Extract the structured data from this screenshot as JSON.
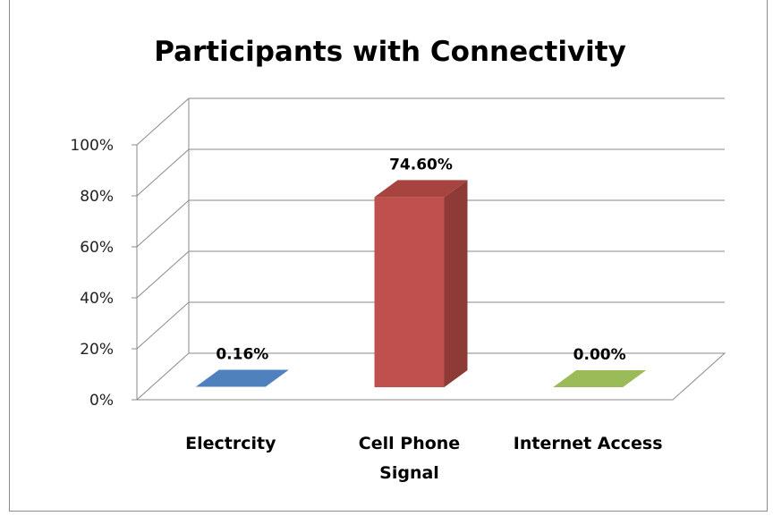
{
  "chart_data": {
    "type": "bar",
    "title": "Participants with Connectivity",
    "categories": [
      "Electrcity",
      "Cell Phone Signal",
      "Internet Access"
    ],
    "category_lines": [
      [
        "Electrcity"
      ],
      [
        "Cell Phone",
        "Signal"
      ],
      [
        "Internet Access"
      ]
    ],
    "values": [
      0.16,
      74.6,
      0.0
    ],
    "data_labels": [
      "0.16%",
      "74.60%",
      "0.00%"
    ],
    "ylim": [
      0,
      100
    ],
    "yticks": [
      "0%",
      "20%",
      "40%",
      "60%",
      "80%",
      "100%"
    ],
    "grid": true,
    "legend": "none",
    "three_d": true,
    "colors": {
      "series": [
        "#4F81BD",
        "#C0504D",
        "#9BBB59"
      ],
      "side": [
        "#3B6494",
        "#8E3A37",
        "#769042"
      ],
      "top": [
        "#385D8A",
        "#A8443F",
        "#7F9A45"
      ],
      "grid": "#8a8a8a"
    }
  }
}
